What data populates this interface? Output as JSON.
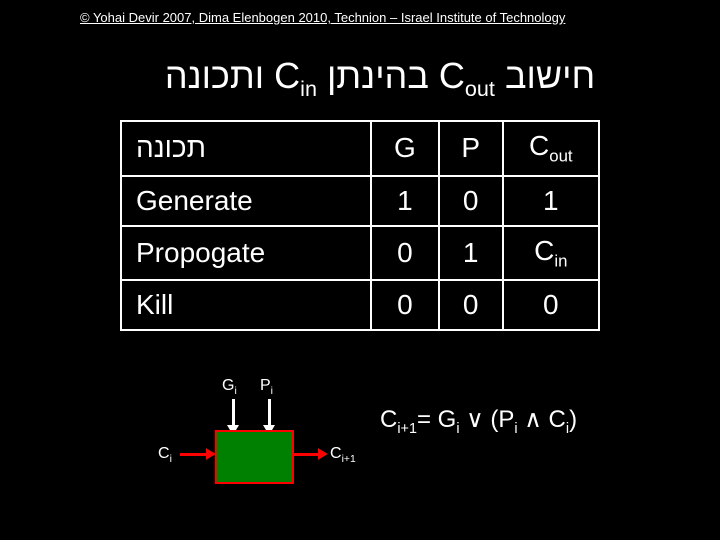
{
  "copyright": "© Yohai Devir 2007, Dima Elenbogen 2010, Technion – Israel Institute of Technology",
  "title_html": "חישוב C<sub>out</sub> בהינתן C<sub>in</sub> ותכונה",
  "table": {
    "headers": [
      "תכונה",
      "G",
      "P",
      "Cout_html"
    ],
    "cout_header_html": "C<sub>out</sub>",
    "rows": [
      {
        "name": "Generate",
        "g": "1",
        "p": "0",
        "cout": "1"
      },
      {
        "name": "Propogate",
        "g": "0",
        "p": "1",
        "cout_html": "C<sub>in</sub>"
      },
      {
        "name": "Kill",
        "g": "0",
        "p": "0",
        "cout": "0"
      }
    ]
  },
  "diagram": {
    "g_label_html": "G<sub>i</sub>",
    "p_label_html": "P<sub>i</sub>",
    "cin_label_html": "C<sub>i</sub>",
    "cout_label_html": "C<sub>i+1</sub>",
    "box_color": "#008000",
    "box_border": "#ff0000",
    "h_arrow_color": "#ff0000",
    "v_arrow_color": "#ffffff"
  },
  "formula_html": "C<sub>i+1</sub>= G<sub>i</sub> ∨ (P<sub>i</sub> ∧ C<sub>i</sub>)"
}
